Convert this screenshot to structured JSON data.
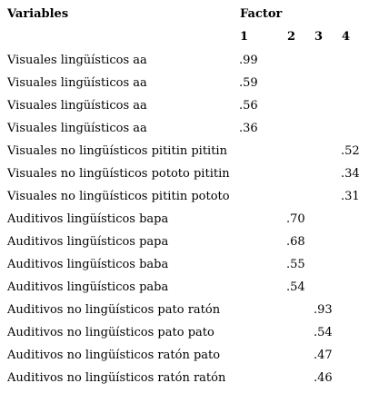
{
  "header": {
    "variables_label": "Variables",
    "factor_label": "Factor",
    "factor_numbers": [
      "1",
      "2",
      "3",
      "4"
    ]
  },
  "rows": [
    {
      "variable": "Visuales lingüísticos aa",
      "factor": 1,
      "loading": ".99"
    },
    {
      "variable": "Visuales lingüísticos aa",
      "factor": 1,
      "loading": ".59"
    },
    {
      "variable": "Visuales lingüísticos aa",
      "factor": 1,
      "loading": ".56"
    },
    {
      "variable": "Visuales lingüísticos aa",
      "factor": 1,
      "loading": ".36"
    },
    {
      "variable": "Visuales no lingüísticos pititin pititin",
      "factor": 4,
      "loading": ".52"
    },
    {
      "variable": "Visuales no lingüísticos pototo pititin",
      "factor": 4,
      "loading": ".34"
    },
    {
      "variable": "Visuales no lingüísticos pititin pototo",
      "factor": 4,
      "loading": ".31"
    },
    {
      "variable": "Auditivos lingüísticos bapa",
      "factor": 2,
      "loading": ".70"
    },
    {
      "variable": "Auditivos lingüísticos papa",
      "factor": 2,
      "loading": ".68"
    },
    {
      "variable": "Auditivos lingüísticos baba",
      "factor": 2,
      "loading": ".55"
    },
    {
      "variable": "Auditivos lingüísticos paba",
      "factor": 2,
      "loading": ".54"
    },
    {
      "variable": "Auditivos no lingüísticos pato ratón",
      "factor": 3,
      "loading": ".93"
    },
    {
      "variable": "Auditivos no lingüísticos pato pato",
      "factor": 3,
      "loading": ".54"
    },
    {
      "variable": "Auditivos no lingüísticos ratón pato",
      "factor": 3,
      "loading": ".47"
    },
    {
      "variable": "Auditivos no lingüísticos ratón ratón",
      "factor": 3,
      "loading": ".46"
    }
  ]
}
